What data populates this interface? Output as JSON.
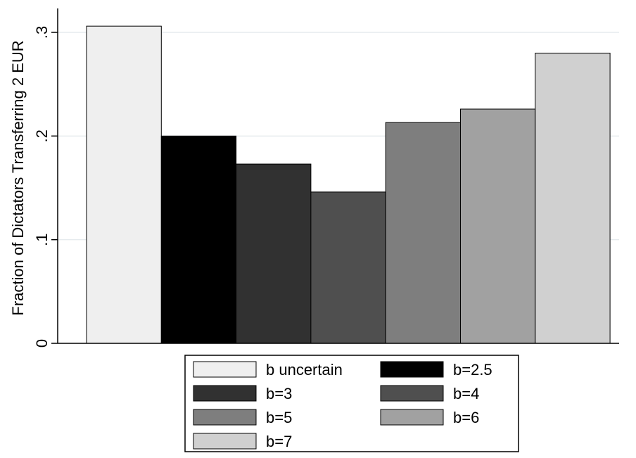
{
  "chart_data": {
    "type": "bar",
    "title": "",
    "xlabel": "",
    "ylabel": "Fraction of Dictators Transferring 2 EUR",
    "ylim": [
      0,
      0.3
    ],
    "yticks": [
      0,
      0.1,
      0.2,
      0.3
    ],
    "ytick_labels": [
      "0",
      ".1",
      ".2",
      ".3"
    ],
    "grid": true,
    "legend_placement": "bottom",
    "series": [
      {
        "name": "b uncertain",
        "values": [
          0.306
        ],
        "color": "#efefef"
      },
      {
        "name": "b=2.5",
        "values": [
          0.2
        ],
        "color": "#000000"
      },
      {
        "name": "b=3",
        "values": [
          0.173
        ],
        "color": "#313131"
      },
      {
        "name": "b=4",
        "values": [
          0.146
        ],
        "color": "#4f4f4f"
      },
      {
        "name": "b=5",
        "values": [
          0.213
        ],
        "color": "#7e7e7e"
      },
      {
        "name": "b=6",
        "values": [
          0.226
        ],
        "color": "#a1a1a1"
      },
      {
        "name": "b=7",
        "values": [
          0.28
        ],
        "color": "#d0d0d0"
      }
    ]
  }
}
